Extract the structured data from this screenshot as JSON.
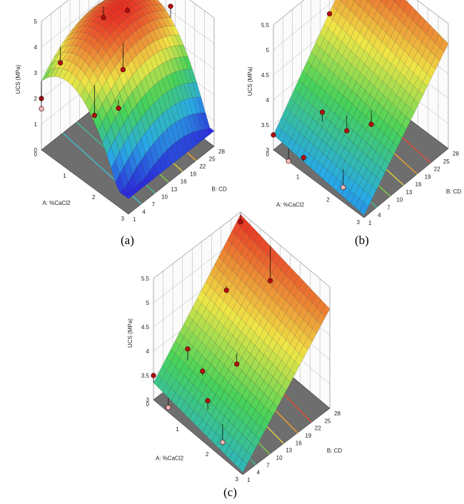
{
  "captions": [
    "(a)",
    "(b)",
    "(c)"
  ],
  "chart_data": [
    {
      "type": "surface",
      "panel": "(a)",
      "zlabel": "UCS (MPa)",
      "xlabel": "A: %CaCl2",
      "ylabel": "B: CD",
      "x_ticks": [
        "0",
        "1",
        "2",
        "3"
      ],
      "y_ticks": [
        "1",
        "4",
        "7",
        "10",
        "13",
        "16",
        "19",
        "22",
        "25",
        "28"
      ],
      "z_ticks": [
        "0",
        "1",
        "2",
        "3",
        "4",
        "5"
      ],
      "xlim": [
        0,
        3
      ],
      "ylim": [
        1,
        28
      ],
      "zlim": [
        0,
        5
      ],
      "colors": {
        "low": "#2b2bd9",
        "high": "#e8261e",
        "floor": "#707070"
      },
      "design_points": [
        {
          "x": 0,
          "y": 1,
          "z": 2.0,
          "above": true
        },
        {
          "x": 0,
          "y": 7,
          "z": 2.8,
          "above": true
        },
        {
          "x": 0,
          "y": 28,
          "z": 3.4,
          "above": true
        },
        {
          "x": 0,
          "y": 1,
          "z": 1.6,
          "above": false
        },
        {
          "x": 1,
          "y": 19,
          "z": 4.5,
          "above": true
        },
        {
          "x": 0.5,
          "y": 16,
          "z": 4.1,
          "above": true
        },
        {
          "x": 1.5,
          "y": 28,
          "z": 4.2,
          "above": true
        },
        {
          "x": 2,
          "y": 7,
          "z": 2.7,
          "above": true
        },
        {
          "x": 1.5,
          "y": 4,
          "z": 2.3,
          "above": true
        },
        {
          "x": 1.5,
          "y": 13,
          "z": 3.2,
          "above": true
        }
      ]
    },
    {
      "type": "surface",
      "panel": "(b)",
      "zlabel": "UCS (MPa)",
      "xlabel": "A: %CaCl2",
      "ylabel": "B: CD",
      "x_ticks": [
        "0",
        "1",
        "2",
        "3"
      ],
      "y_ticks": [
        "1",
        "4",
        "7",
        "10",
        "13",
        "16",
        "19",
        "22",
        "25",
        "28"
      ],
      "z_ticks": [
        "3",
        "3.5",
        "4",
        "4.5",
        "5",
        "5.5"
      ],
      "xlim": [
        0,
        3
      ],
      "ylim": [
        1,
        28
      ],
      "zlim": [
        3,
        5.5
      ],
      "colors": {
        "low": "#3aa0e0",
        "high": "#e85050",
        "floor": "#707070"
      },
      "design_points": [
        {
          "x": 0,
          "y": 28,
          "z": 5.2,
          "above": true
        },
        {
          "x": 0,
          "y": 19,
          "z": 4.8,
          "above": true
        },
        {
          "x": 0,
          "y": 1,
          "z": 3.3,
          "above": true
        },
        {
          "x": 1,
          "y": 7,
          "z": 3.9,
          "above": true
        },
        {
          "x": 1,
          "y": 1,
          "z": 3.3,
          "above": true
        },
        {
          "x": 1.5,
          "y": 10,
          "z": 3.6,
          "above": true
        },
        {
          "x": 2,
          "y": 13,
          "z": 3.8,
          "above": true
        },
        {
          "x": 0.5,
          "y": 1,
          "z": 3.0,
          "above": false
        },
        {
          "x": 2,
          "y": 4,
          "z": 3.0,
          "above": false
        }
      ]
    },
    {
      "type": "surface",
      "panel": "(c)",
      "zlabel": "UCS (MPa)",
      "xlabel": "A: %CaCl2",
      "ylabel": "B: CD",
      "x_ticks": [
        "0",
        "1",
        "2",
        "3"
      ],
      "y_ticks": [
        "1",
        "4",
        "7",
        "10",
        "13",
        "16",
        "19",
        "22",
        "25",
        "28"
      ],
      "z_ticks": [
        "3",
        "3.5",
        "4",
        "4.5",
        "5",
        "5.5"
      ],
      "xlim": [
        0,
        3
      ],
      "ylim": [
        1,
        28
      ],
      "zlim": [
        3,
        5.5
      ],
      "colors": {
        "low": "#3ac0b0",
        "high": "#e85050",
        "floor": "#707070"
      },
      "design_points": [
        {
          "x": 0,
          "y": 28,
          "z": 5.3,
          "above": true
        },
        {
          "x": 0.5,
          "y": 19,
          "z": 4.6,
          "above": true
        },
        {
          "x": 1,
          "y": 28,
          "z": 4.6,
          "above": true
        },
        {
          "x": 0.5,
          "y": 7,
          "z": 4.0,
          "above": true
        },
        {
          "x": 0,
          "y": 1,
          "z": 3.5,
          "above": true
        },
        {
          "x": 1,
          "y": 7,
          "z": 3.8,
          "above": true
        },
        {
          "x": 1.5,
          "y": 13,
          "z": 3.9,
          "above": true
        },
        {
          "x": 1.5,
          "y": 4,
          "z": 3.6,
          "above": true
        },
        {
          "x": 0.5,
          "y": 1,
          "z": 3.1,
          "above": false
        },
        {
          "x": 2,
          "y": 4,
          "z": 3.0,
          "above": false
        }
      ]
    }
  ]
}
